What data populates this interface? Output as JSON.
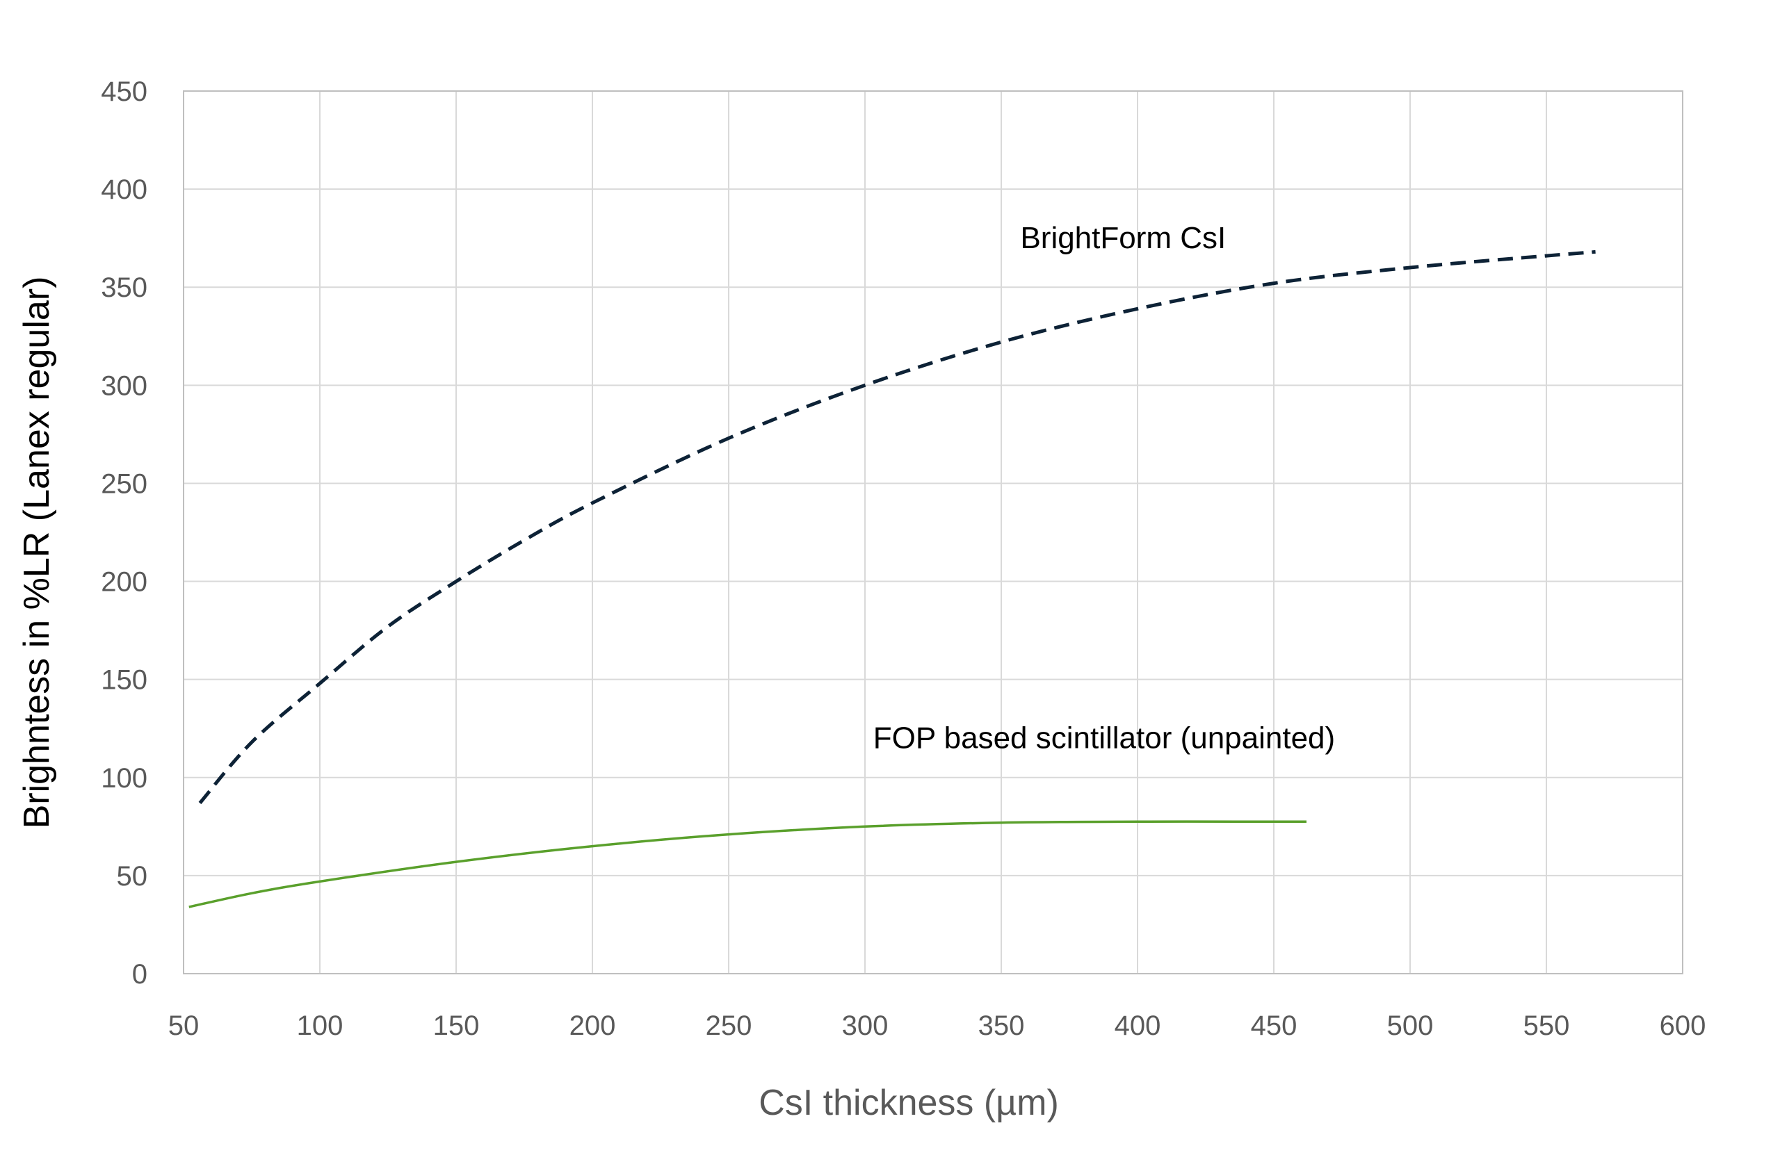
{
  "chart_data": {
    "type": "line",
    "title": "",
    "xlabel": "CsI thickness (µm)",
    "ylabel": "Brighntess in %LR (Lanex regular)",
    "xlim": [
      50,
      600
    ],
    "ylim": [
      0,
      450
    ],
    "x_ticks": [
      50,
      100,
      150,
      200,
      250,
      300,
      350,
      400,
      450,
      500,
      550,
      600
    ],
    "y_ticks": [
      0,
      50,
      100,
      150,
      200,
      250,
      300,
      350,
      400,
      450
    ],
    "grid": true,
    "legend": "none",
    "series": [
      {
        "name": "BrightForm CsI",
        "style": "dashed",
        "color": "#0d2236",
        "x": [
          56,
          75,
          100,
          125,
          150,
          175,
          200,
          250,
          300,
          350,
          400,
          450,
          500,
          550,
          568
        ],
        "y": [
          87,
          118,
          148,
          177,
          200,
          221,
          240,
          273,
          300,
          322,
          339,
          352,
          360,
          366,
          368
        ]
      },
      {
        "name": "FOP based scintillator (unpainted)",
        "style": "solid",
        "color": "#5aa02c",
        "x": [
          52,
          75,
          100,
          150,
          200,
          250,
          300,
          350,
          400,
          450,
          462
        ],
        "y": [
          34,
          41,
          47,
          57,
          65,
          71,
          75,
          77,
          77.5,
          77.5,
          77.5
        ]
      }
    ],
    "annotations": [
      {
        "text": "BrightForm CsI",
        "x": 357,
        "y": 370
      },
      {
        "text": "FOP based scintillator (unpainted)",
        "x": 303,
        "y": 115
      }
    ]
  }
}
